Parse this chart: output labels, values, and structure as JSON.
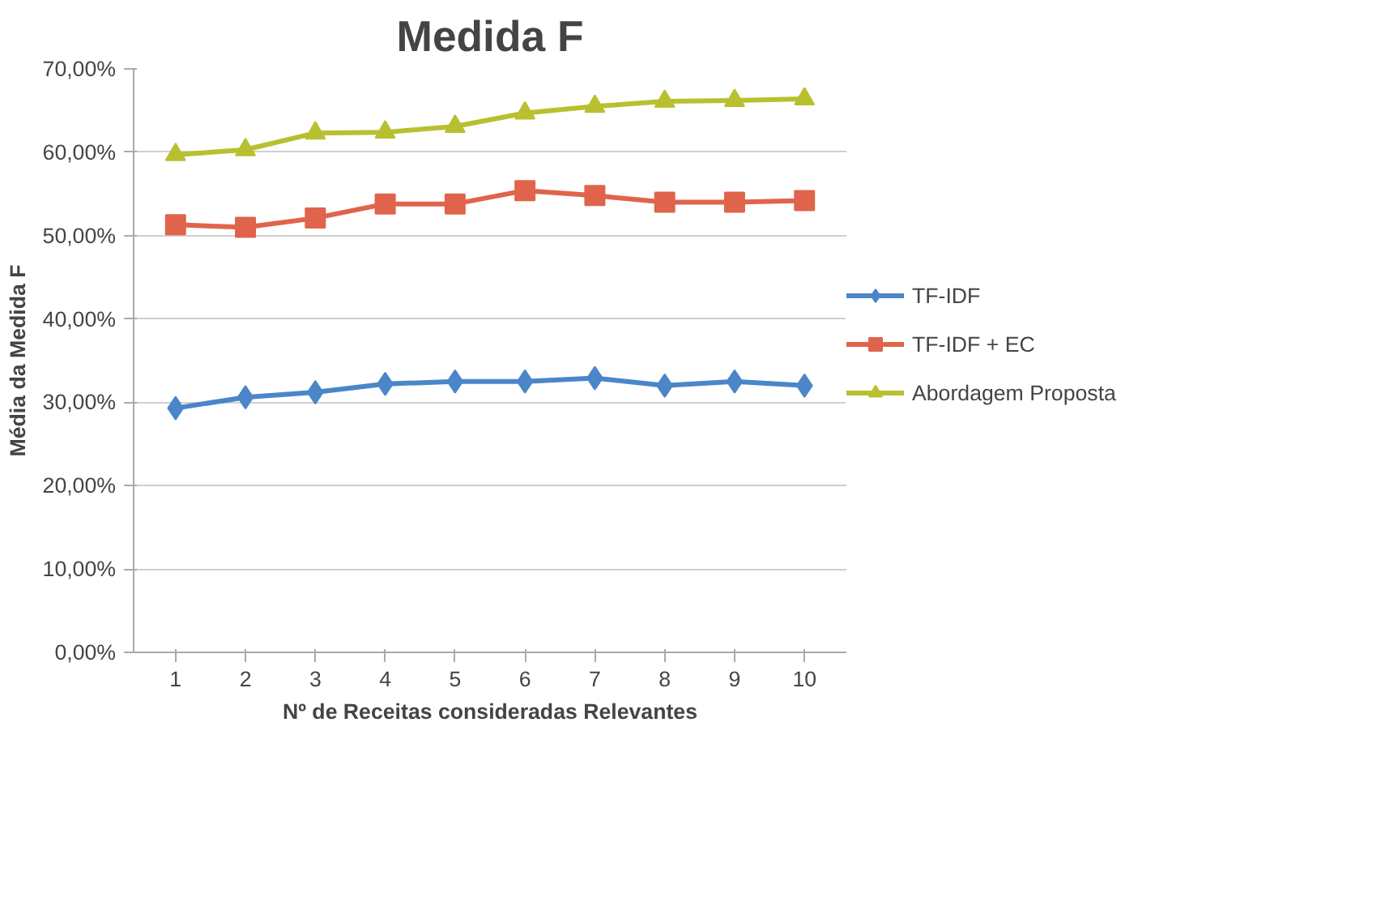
{
  "chart_data": {
    "type": "line",
    "title": "Medida F",
    "xlabel": "Nº de Receitas consideradas Relevantes",
    "ylabel": "Média da Medida F",
    "categories": [
      "1",
      "2",
      "3",
      "4",
      "5",
      "6",
      "7",
      "8",
      "9",
      "10"
    ],
    "series": [
      {
        "name": "TF-IDF",
        "color": "#4a86c8",
        "marker": "diamond",
        "values": [
          29.3,
          30.6,
          31.2,
          32.2,
          32.5,
          32.5,
          32.9,
          32.0,
          32.5,
          32.0
        ]
      },
      {
        "name": "TF-IDF + EC",
        "color": "#e0644c",
        "marker": "square",
        "values": [
          51.3,
          51.0,
          52.1,
          53.8,
          53.8,
          55.4,
          54.8,
          54.0,
          54.0,
          54.2
        ]
      },
      {
        "name": "Abordagem Proposta",
        "color": "#b8c030",
        "marker": "triangle",
        "values": [
          59.7,
          60.3,
          62.3,
          62.4,
          63.1,
          64.7,
          65.5,
          66.1,
          66.2,
          66.4
        ]
      }
    ],
    "ylim": [
      0,
      70
    ],
    "yticks": [
      {
        "value": 0,
        "label": "0,00%"
      },
      {
        "value": 10,
        "label": "10,00%"
      },
      {
        "value": 20,
        "label": "20,00%"
      },
      {
        "value": 30,
        "label": "30,00%"
      },
      {
        "value": 40,
        "label": "40,00%"
      },
      {
        "value": 50,
        "label": "50,00%"
      },
      {
        "value": 60,
        "label": "60,00%"
      },
      {
        "value": 70,
        "label": "70,00%"
      }
    ],
    "grid": "y",
    "legend": "right"
  }
}
